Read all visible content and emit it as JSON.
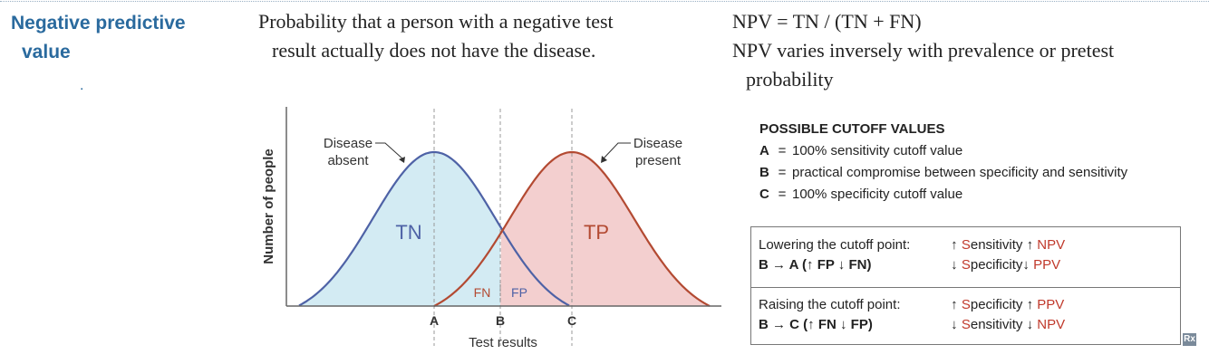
{
  "term": {
    "line1": "Negative predictive",
    "line2": "value"
  },
  "bullet": ".",
  "definition": {
    "line1": "Probability that a person with a negative test",
    "line2": "result actually does not have the disease."
  },
  "formula": {
    "line1": "NPV = TN / (TN + FN)",
    "line2": "NPV varies inversely with prevalence or pretest",
    "line3": "probability"
  },
  "chart_data": {
    "type": "line",
    "title": "",
    "xlabel": "Test results",
    "ylabel": "Number of people",
    "series": [
      {
        "name": "Disease absent",
        "color": "#4e62a6",
        "fill": "#d3ebf3"
      },
      {
        "name": "Disease present",
        "color": "#b34a32",
        "fill": "#f3cfcf"
      }
    ],
    "cutoffs": [
      "A",
      "B",
      "C"
    ],
    "regions": {
      "tn": "TN",
      "tp": "TP",
      "fn": "FN",
      "fp": "FP"
    },
    "labels": {
      "absent_l1": "Disease",
      "absent_l2": "absent",
      "present_l1": "Disease",
      "present_l2": "present"
    }
  },
  "cutoff_values": {
    "header": "POSSIBLE CUTOFF VALUES",
    "items": [
      {
        "key": "A",
        "eq": "=",
        "text": "100% sensitivity cutoff value"
      },
      {
        "key": "B",
        "eq": "=",
        "text": "practical compromise between specificity and sensitivity"
      },
      {
        "key": "C",
        "eq": "=",
        "text": "100% specificity cutoff value"
      }
    ]
  },
  "summary_box": {
    "lowering": {
      "title": "Lowering the cutoff point:",
      "detail": "B → A (↑ FP ↓ FN)",
      "up1_arrow": "↑",
      "up1_s": "S",
      "up1_rest": "ensitivity",
      "up2_arrow": "↑",
      "up2": "NPV",
      "down1_arrow": "↓",
      "down1_s": "S",
      "down1_rest": "pecificity",
      "down2_arrow": "↓",
      "down2": "PPV"
    },
    "raising": {
      "title": "Raising the cutoff point:",
      "detail": "B → C (↑ FN ↓ FP)",
      "up1_arrow": "↑",
      "up1_s": "S",
      "up1_rest": "pecificity",
      "up2_arrow": "↑",
      "up2": "PPV",
      "down1_arrow": "↓",
      "down1_s": "S",
      "down1_rest": "ensitivity",
      "down2_arrow": "↓",
      "down2": "NPV"
    }
  },
  "badge": "Rx"
}
